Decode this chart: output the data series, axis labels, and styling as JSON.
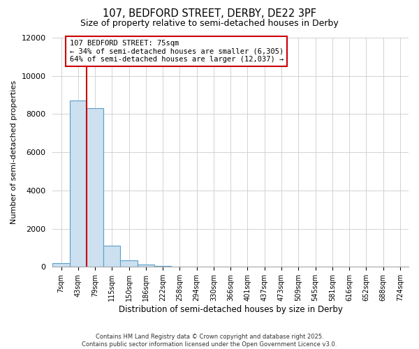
{
  "title": "107, BEDFORD STREET, DERBY, DE22 3PF",
  "subtitle": "Size of property relative to semi-detached houses in Derby",
  "xlabel": "Distribution of semi-detached houses by size in Derby",
  "ylabel": "Number of semi-detached properties",
  "bar_labels": [
    "7sqm",
    "43sqm",
    "79sqm",
    "115sqm",
    "150sqm",
    "186sqm",
    "222sqm",
    "258sqm",
    "294sqm",
    "330sqm",
    "366sqm",
    "401sqm",
    "437sqm",
    "473sqm",
    "509sqm",
    "545sqm",
    "581sqm",
    "616sqm",
    "652sqm",
    "688sqm",
    "724sqm"
  ],
  "bar_values": [
    200,
    8700,
    8300,
    1100,
    350,
    100,
    50,
    0,
    0,
    0,
    0,
    0,
    0,
    0,
    0,
    0,
    0,
    0,
    0,
    0,
    0
  ],
  "bar_color": "#cce0f0",
  "bar_edge_color": "#5a9ec9",
  "vline_color": "#cc0000",
  "annotation_box_text": "107 BEDFORD STREET: 75sqm\n← 34% of semi-detached houses are smaller (6,305)\n64% of semi-detached houses are larger (12,037) →",
  "annotation_box_edge_color": "#cc0000",
  "ylim": [
    0,
    12000
  ],
  "yticks": [
    0,
    2000,
    4000,
    6000,
    8000,
    10000,
    12000
  ],
  "background_color": "#ffffff",
  "footer_line1": "Contains HM Land Registry data © Crown copyright and database right 2025.",
  "footer_line2": "Contains public sector information licensed under the Open Government Licence v3.0."
}
